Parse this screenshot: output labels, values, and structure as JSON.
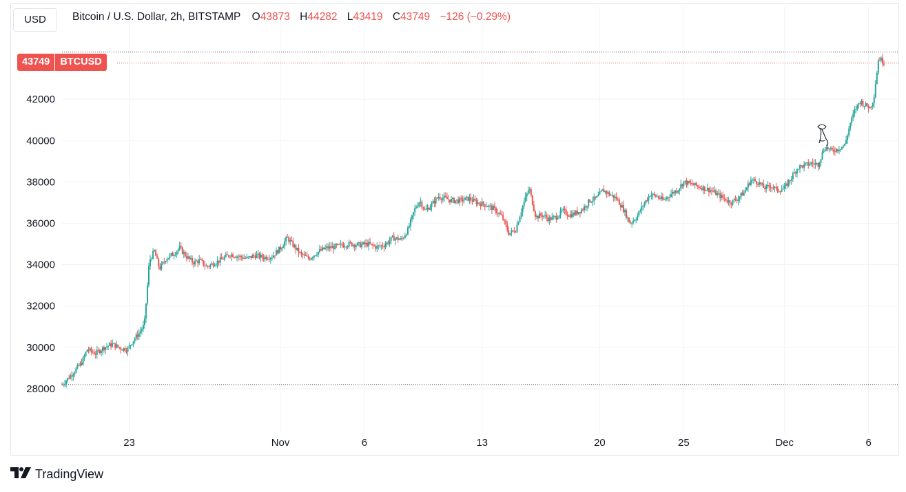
{
  "header": {
    "currency_button": "USD",
    "symbol_text": "Bitcoin / U.S. Dollar, 2h, BITSTAMP",
    "open_key": "O",
    "open_val": "43873",
    "high_key": "H",
    "high_val": "44282",
    "low_key": "L",
    "low_val": "43419",
    "close_key": "C",
    "close_val": "43749",
    "change": "−126 (−0.29%)"
  },
  "price_tag": {
    "price": "43749",
    "symbol": "BTCUSD"
  },
  "brand": {
    "name": "TradingView"
  },
  "colors": {
    "up": "#26a69a",
    "down": "#ef5350",
    "grid": "#f0f3fa",
    "text": "#131722"
  },
  "chart_data": {
    "type": "candlestick",
    "y_ticks": [
      28000,
      30000,
      32000,
      34000,
      36000,
      38000,
      40000,
      42000
    ],
    "ylim": [
      26500,
      44800
    ],
    "x_ticks": [
      {
        "label": "23",
        "day": 23
      },
      {
        "label": "Nov",
        "day": 32
      },
      {
        "label": "6",
        "day": 37
      },
      {
        "label": "13",
        "day": 44
      },
      {
        "label": "20",
        "day": 51
      },
      {
        "label": "25",
        "day": 56
      },
      {
        "label": "Dec",
        "day": 62
      },
      {
        "label": "6",
        "day": 67
      }
    ],
    "xlim_days": [
      19,
      68
    ],
    "dotted_levels": [
      44282,
      28200
    ],
    "last_price": 43749,
    "price_path": [
      [
        19.0,
        28200
      ],
      [
        19.3,
        28450
      ],
      [
        19.8,
        28900
      ],
      [
        20.2,
        29300
      ],
      [
        20.5,
        29900
      ],
      [
        21.0,
        29700
      ],
      [
        21.5,
        30000
      ],
      [
        22.0,
        30150
      ],
      [
        22.5,
        29950
      ],
      [
        22.9,
        29900
      ],
      [
        23.2,
        30300
      ],
      [
        23.6,
        30700
      ],
      [
        23.9,
        31100
      ],
      [
        24.2,
        34200
      ],
      [
        24.5,
        34650
      ],
      [
        24.8,
        33800
      ],
      [
        25.2,
        34300
      ],
      [
        25.6,
        34500
      ],
      [
        26.0,
        34800
      ],
      [
        26.4,
        34400
      ],
      [
        26.8,
        34100
      ],
      [
        27.2,
        34200
      ],
      [
        27.6,
        33900
      ],
      [
        28.0,
        34050
      ],
      [
        28.5,
        34250
      ],
      [
        29.0,
        34500
      ],
      [
        29.5,
        34400
      ],
      [
        30.0,
        34300
      ],
      [
        30.5,
        34450
      ],
      [
        31.0,
        34350
      ],
      [
        31.5,
        34400
      ],
      [
        32.0,
        34800
      ],
      [
        32.4,
        35300
      ],
      [
        32.8,
        34900
      ],
      [
        33.2,
        34500
      ],
      [
        33.7,
        34300
      ],
      [
        34.2,
        34600
      ],
      [
        34.7,
        34800
      ],
      [
        35.2,
        34850
      ],
      [
        35.7,
        34950
      ],
      [
        36.2,
        35000
      ],
      [
        36.7,
        34950
      ],
      [
        37.2,
        35000
      ],
      [
        37.7,
        34850
      ],
      [
        38.2,
        34950
      ],
      [
        38.7,
        35300
      ],
      [
        39.2,
        35200
      ],
      [
        39.6,
        35700
      ],
      [
        40.0,
        36700
      ],
      [
        40.3,
        37100
      ],
      [
        40.6,
        36600
      ],
      [
        41.0,
        36900
      ],
      [
        41.4,
        37300
      ],
      [
        41.8,
        37200
      ],
      [
        42.2,
        37100
      ],
      [
        42.7,
        37100
      ],
      [
        43.2,
        37200
      ],
      [
        43.7,
        37000
      ],
      [
        44.2,
        36900
      ],
      [
        44.7,
        36700
      ],
      [
        45.2,
        36300
      ],
      [
        45.6,
        35500
      ],
      [
        46.0,
        35700
      ],
      [
        46.4,
        36800
      ],
      [
        46.8,
        37700
      ],
      [
        47.2,
        36300
      ],
      [
        47.6,
        36400
      ],
      [
        48.0,
        36200
      ],
      [
        48.4,
        36300
      ],
      [
        48.8,
        36600
      ],
      [
        49.2,
        36400
      ],
      [
        49.6,
        36500
      ],
      [
        50.0,
        36700
      ],
      [
        50.4,
        37100
      ],
      [
        50.8,
        37200
      ],
      [
        51.2,
        37600
      ],
      [
        51.6,
        37400
      ],
      [
        52.0,
        37200
      ],
      [
        52.4,
        36700
      ],
      [
        52.8,
        36000
      ],
      [
        53.2,
        36300
      ],
      [
        53.6,
        36900
      ],
      [
        54.0,
        37400
      ],
      [
        54.4,
        37300
      ],
      [
        54.8,
        37100
      ],
      [
        55.2,
        37400
      ],
      [
        55.6,
        37600
      ],
      [
        56.0,
        38000
      ],
      [
        56.4,
        37900
      ],
      [
        56.8,
        37800
      ],
      [
        57.2,
        37700
      ],
      [
        57.6,
        37600
      ],
      [
        58.0,
        37400
      ],
      [
        58.4,
        37200
      ],
      [
        58.8,
        37000
      ],
      [
        59.2,
        37200
      ],
      [
        59.6,
        37500
      ],
      [
        60.0,
        38100
      ],
      [
        60.4,
        38000
      ],
      [
        60.8,
        37700
      ],
      [
        61.2,
        37800
      ],
      [
        61.6,
        37600
      ],
      [
        62.0,
        37700
      ],
      [
        62.4,
        38200
      ],
      [
        62.8,
        38700
      ],
      [
        63.2,
        38800
      ],
      [
        63.6,
        38900
      ],
      [
        64.0,
        38850
      ],
      [
        64.4,
        39700
      ],
      [
        64.8,
        39500
      ],
      [
        65.2,
        39600
      ],
      [
        65.6,
        39800
      ],
      [
        65.9,
        40800
      ],
      [
        66.2,
        41500
      ],
      [
        66.5,
        41900
      ],
      [
        66.8,
        41700
      ],
      [
        67.1,
        41600
      ],
      [
        67.3,
        42000
      ],
      [
        67.6,
        44000
      ],
      [
        67.9,
        43800
      ],
      [
        68.0,
        43749
      ]
    ]
  }
}
